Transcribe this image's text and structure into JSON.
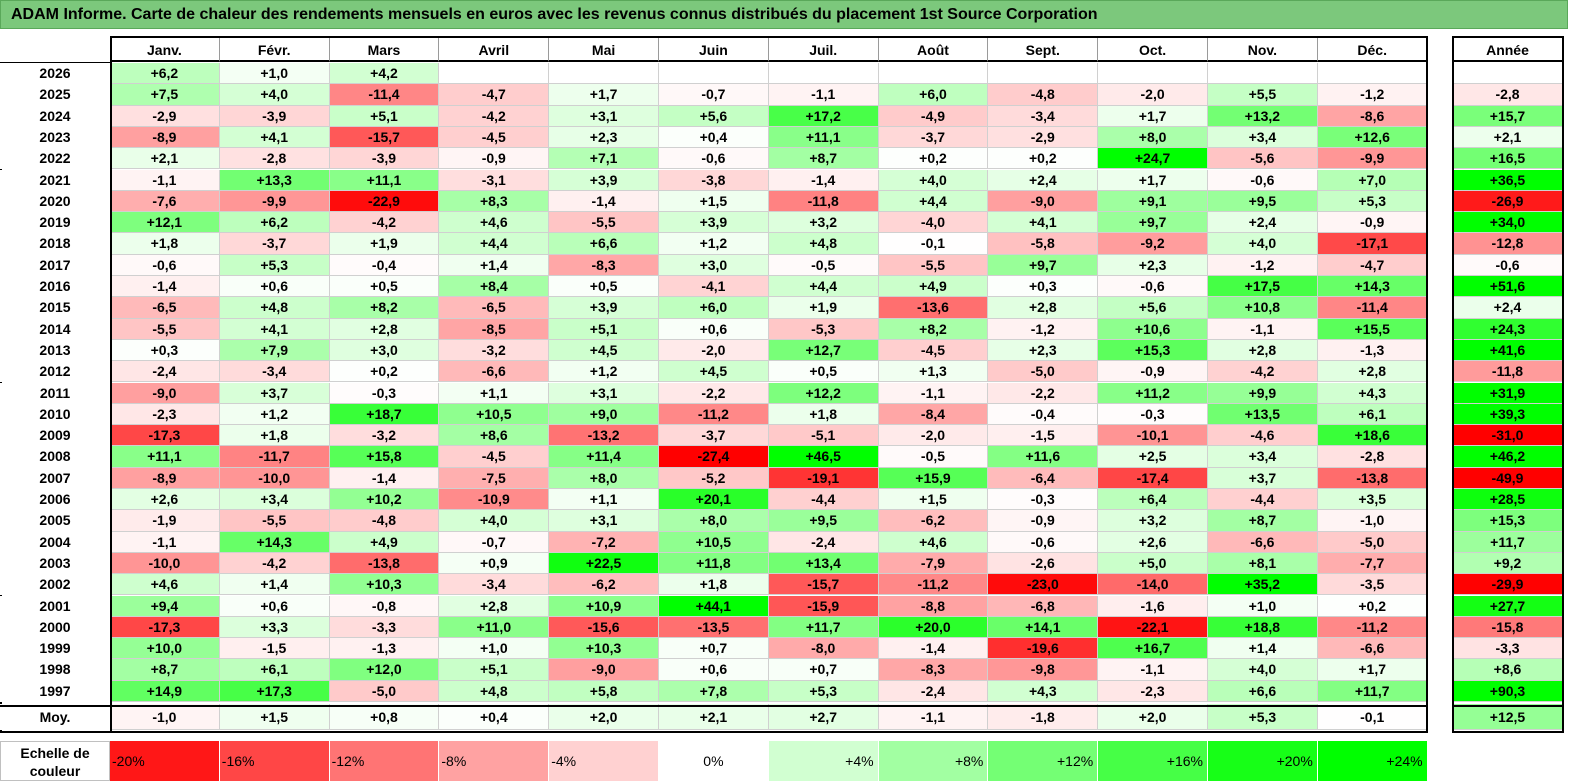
{
  "title": "ADAM Informe. Carte de chaleur des rendements mensuels en euros avec les revenus connus distribués du placement 1st Source Corporation",
  "chart_data": {
    "type": "heatmap",
    "title": "ADAM Informe. Carte de chaleur des rendements mensuels en euros avec les revenus connus distribués du placement 1st Source Corporation",
    "columns": [
      "Janv.",
      "Févr.",
      "Mars",
      "Avril",
      "Mai",
      "Juin",
      "Juil.",
      "Août",
      "Sept.",
      "Oct.",
      "Nov.",
      "Déc."
    ],
    "year_column": "Année",
    "rows": [
      {
        "year": "2026",
        "months": [
          "+6,2",
          "+1,0",
          "+4,2",
          "",
          "",
          "",
          "",
          "",
          "",
          "",
          "",
          ""
        ],
        "annual": ""
      },
      {
        "year": "2025",
        "months": [
          "+7,5",
          "+4,0",
          "-11,4",
          "-4,7",
          "+1,7",
          "-0,7",
          "-1,1",
          "+6,0",
          "-4,8",
          "-2,0",
          "+5,5",
          "-1,2"
        ],
        "annual": "-2,8"
      },
      {
        "year": "2024",
        "months": [
          "-2,9",
          "-3,9",
          "+5,1",
          "-4,2",
          "+3,1",
          "+5,6",
          "+17,2",
          "-4,9",
          "-3,4",
          "+1,7",
          "+13,2",
          "-8,6"
        ],
        "annual": "+15,7"
      },
      {
        "year": "2023",
        "months": [
          "-8,9",
          "+4,1",
          "-15,7",
          "-4,5",
          "+2,3",
          "+0,4",
          "+11,1",
          "-3,7",
          "-2,9",
          "+8,0",
          "+3,4",
          "+12,6"
        ],
        "annual": "+2,1"
      },
      {
        "year": "2022",
        "months": [
          "+2,1",
          "-2,8",
          "-3,9",
          "-0,9",
          "+7,1",
          "-0,6",
          "+8,7",
          "+0,2",
          "+0,2",
          "+24,7",
          "-5,6",
          "-9,9"
        ],
        "annual": "+16,5"
      },
      {
        "year": "2021",
        "months": [
          "-1,1",
          "+13,3",
          "+11,1",
          "-3,1",
          "+3,9",
          "-3,8",
          "-1,4",
          "+4,0",
          "+2,4",
          "+1,7",
          "-0,6",
          "+7,0"
        ],
        "annual": "+36,5"
      },
      {
        "year": "2020",
        "months": [
          "-7,6",
          "-9,9",
          "-22,9",
          "+8,3",
          "-1,4",
          "+1,5",
          "-11,8",
          "+4,4",
          "-9,0",
          "+9,1",
          "+9,5",
          "+5,3"
        ],
        "annual": "-26,9"
      },
      {
        "year": "2019",
        "months": [
          "+12,1",
          "+6,2",
          "-4,2",
          "+4,6",
          "-5,5",
          "+3,9",
          "+3,2",
          "-4,0",
          "+4,1",
          "+9,7",
          "+2,4",
          "-0,9"
        ],
        "annual": "+34,0"
      },
      {
        "year": "2018",
        "months": [
          "+1,8",
          "-3,7",
          "+1,9",
          "+4,4",
          "+6,6",
          "+1,2",
          "+4,8",
          "-0,1",
          "-5,8",
          "-9,2",
          "+4,0",
          "-17,1"
        ],
        "annual": "-12,8"
      },
      {
        "year": "2017",
        "months": [
          "-0,6",
          "+5,3",
          "-0,4",
          "+1,4",
          "-8,3",
          "+3,0",
          "-0,5",
          "-5,5",
          "+9,7",
          "+2,3",
          "-1,2",
          "-4,7"
        ],
        "annual": "-0,6"
      },
      {
        "year": "2016",
        "months": [
          "-1,4",
          "+0,6",
          "+0,5",
          "+8,4",
          "+0,5",
          "-4,1",
          "+4,4",
          "+4,9",
          "+0,3",
          "-0,6",
          "+17,5",
          "+14,3"
        ],
        "annual": "+51,6"
      },
      {
        "year": "2015",
        "months": [
          "-6,5",
          "+4,8",
          "+8,2",
          "-6,5",
          "+3,9",
          "+6,0",
          "+1,9",
          "-13,6",
          "+2,8",
          "+5,6",
          "+10,8",
          "-11,4"
        ],
        "annual": "+2,4"
      },
      {
        "year": "2014",
        "months": [
          "-5,5",
          "+4,1",
          "+2,8",
          "-8,5",
          "+5,1",
          "+0,6",
          "-5,3",
          "+8,2",
          "-1,2",
          "+10,6",
          "-1,1",
          "+15,5"
        ],
        "annual": "+24,3"
      },
      {
        "year": "2013",
        "months": [
          "+0,3",
          "+7,9",
          "+3,0",
          "-3,2",
          "+4,5",
          "-2,0",
          "+12,7",
          "-4,5",
          "+2,3",
          "+15,3",
          "+2,8",
          "-1,3"
        ],
        "annual": "+41,6"
      },
      {
        "year": "2012",
        "months": [
          "-2,4",
          "-3,4",
          "+0,2",
          "-6,6",
          "+1,2",
          "+4,5",
          "+0,5",
          "+1,3",
          "-5,0",
          "-0,9",
          "-4,2",
          "+2,8"
        ],
        "annual": "-11,8"
      },
      {
        "year": "2011",
        "months": [
          "-9,0",
          "+3,7",
          "-0,3",
          "+1,1",
          "+3,1",
          "-2,2",
          "+12,2",
          "-1,1",
          "-2,2",
          "+11,2",
          "+9,9",
          "+4,3"
        ],
        "annual": "+31,9"
      },
      {
        "year": "2010",
        "months": [
          "-2,3",
          "+1,2",
          "+18,7",
          "+10,5",
          "+9,0",
          "-11,2",
          "+1,8",
          "-8,4",
          "-0,4",
          "-0,3",
          "+13,5",
          "+6,1"
        ],
        "annual": "+39,3"
      },
      {
        "year": "2009",
        "months": [
          "-17,3",
          "+1,8",
          "-3,2",
          "+8,6",
          "-13,2",
          "-3,7",
          "-5,1",
          "-2,0",
          "-1,5",
          "-10,1",
          "-4,6",
          "+18,6"
        ],
        "annual": "-31,0"
      },
      {
        "year": "2008",
        "months": [
          "+11,1",
          "-11,7",
          "+15,8",
          "-4,5",
          "+11,4",
          "-27,4",
          "+46,5",
          "-0,5",
          "+11,6",
          "+2,5",
          "+3,4",
          "-2,8"
        ],
        "annual": "+46,2"
      },
      {
        "year": "2007",
        "months": [
          "-8,9",
          "-10,0",
          "-1,4",
          "-7,5",
          "+8,0",
          "-5,2",
          "-19,1",
          "+15,9",
          "-6,4",
          "-17,4",
          "+3,7",
          "-13,8"
        ],
        "annual": "-49,9"
      },
      {
        "year": "2006",
        "months": [
          "+2,6",
          "+3,4",
          "+10,2",
          "-10,9",
          "+1,1",
          "+20,1",
          "-4,4",
          "+1,5",
          "-0,3",
          "+6,4",
          "-4,4",
          "+3,5"
        ],
        "annual": "+28,5"
      },
      {
        "year": "2005",
        "months": [
          "-1,9",
          "-5,5",
          "-4,8",
          "+4,0",
          "+3,1",
          "+8,0",
          "+9,5",
          "-6,2",
          "-0,9",
          "+3,2",
          "+8,7",
          "-1,0"
        ],
        "annual": "+15,3"
      },
      {
        "year": "2004",
        "months": [
          "-1,1",
          "+14,3",
          "+4,9",
          "-0,7",
          "-7,2",
          "+10,5",
          "-2,4",
          "+4,6",
          "-0,6",
          "+2,6",
          "-6,6",
          "-5,0"
        ],
        "annual": "+11,7"
      },
      {
        "year": "2003",
        "months": [
          "-10,0",
          "-4,2",
          "-13,8",
          "+0,9",
          "+22,5",
          "+11,8",
          "+13,4",
          "-7,9",
          "-2,6",
          "+5,0",
          "+8,1",
          "-7,7"
        ],
        "annual": "+9,2"
      },
      {
        "year": "2002",
        "months": [
          "+4,6",
          "+1,4",
          "+10,3",
          "-3,4",
          "-6,2",
          "+1,8",
          "-15,7",
          "-11,2",
          "-23,0",
          "-14,0",
          "+35,2",
          "-3,5"
        ],
        "annual": "-29,9"
      },
      {
        "year": "2001",
        "months": [
          "+9,4",
          "+0,6",
          "-0,8",
          "+2,8",
          "+10,9",
          "+44,1",
          "-15,9",
          "-8,8",
          "-6,8",
          "-1,6",
          "+1,0",
          "+0,2"
        ],
        "annual": "+27,7"
      },
      {
        "year": "2000",
        "months": [
          "-17,3",
          "+3,3",
          "-3,3",
          "+11,0",
          "-15,6",
          "-13,5",
          "+11,7",
          "+20,0",
          "+14,1",
          "-22,1",
          "+18,8",
          "-11,2"
        ],
        "annual": "-15,8"
      },
      {
        "year": "1999",
        "months": [
          "+10,0",
          "-1,5",
          "-1,3",
          "+1,0",
          "+10,3",
          "+0,7",
          "-8,0",
          "-1,4",
          "-19,6",
          "+16,7",
          "+1,4",
          "-6,6"
        ],
        "annual": "-3,3"
      },
      {
        "year": "1998",
        "months": [
          "+8,7",
          "+6,1",
          "+12,0",
          "+5,1",
          "-9,0",
          "+0,6",
          "+0,7",
          "-8,3",
          "-9,8",
          "-1,1",
          "+4,0",
          "+1,7"
        ],
        "annual": "+8,6"
      },
      {
        "year": "1997",
        "months": [
          "+14,9",
          "+17,3",
          "-5,0",
          "+4,8",
          "+5,8",
          "+7,8",
          "+5,3",
          "-2,4",
          "+4,3",
          "-2,3",
          "+6,6",
          "+11,7"
        ],
        "annual": "+90,3"
      }
    ],
    "average": {
      "label": "Moy.",
      "months": [
        "-1,0",
        "+1,5",
        "+0,8",
        "+0,4",
        "+2,0",
        "+2,1",
        "+2,7",
        "-1,1",
        "-1,8",
        "+2,0",
        "+5,3",
        "-0,1"
      ],
      "annual": "+12,5"
    },
    "color_scale": {
      "label": "Echelle de couleur",
      "stops": [
        "-20%",
        "-16%",
        "-12%",
        "-8%",
        "-4%",
        "0%",
        "+4%",
        "+8%",
        "+12%",
        "+16%",
        "+20%",
        "+24%"
      ],
      "negative_color": "#ff0000",
      "neutral_color": "#ffffff",
      "positive_color": "#00ff00"
    }
  }
}
